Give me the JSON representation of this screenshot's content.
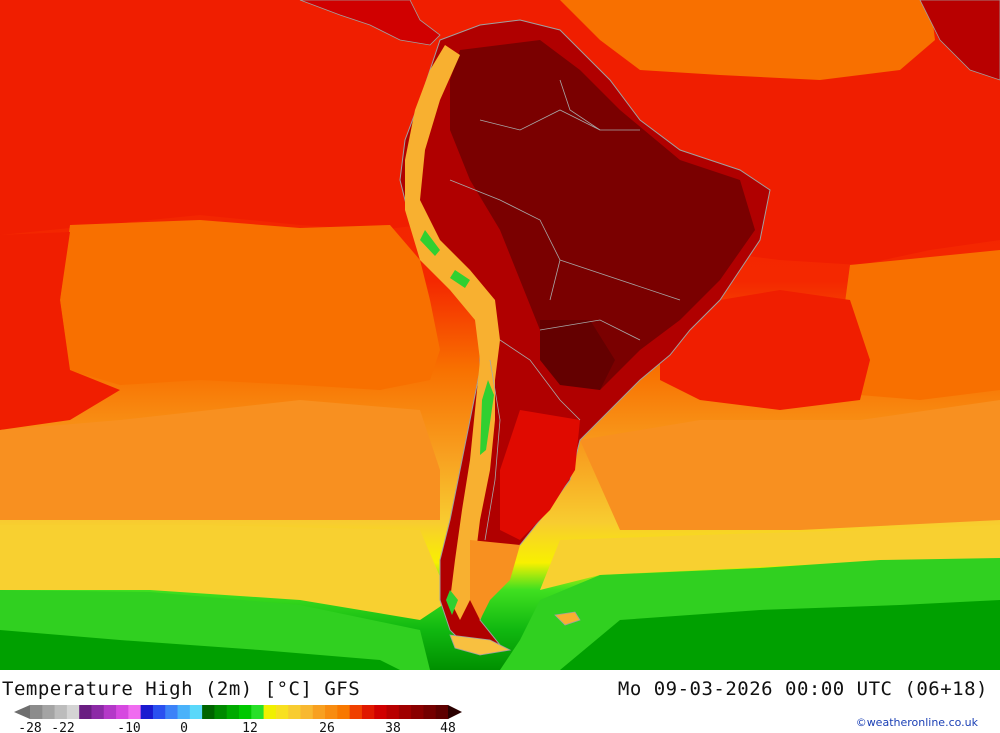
{
  "title": "Temperature High (2m) [°C] GFS",
  "datetime": "Mo 09-03-2026 00:00 UTC (06+18)",
  "credit": "©weatheronline.co.uk",
  "legend": {
    "tick_labels": [
      "-28",
      "-22",
      "-10",
      "0",
      "12",
      "26",
      "38",
      "48"
    ],
    "tick_values": [
      -28,
      -22,
      -10,
      0,
      12,
      26,
      38,
      48
    ],
    "min": -28,
    "max": 48,
    "colors": [
      "#8c8c8c",
      "#a4a4a4",
      "#bcbcbc",
      "#d4d4d4",
      "#6a1e82",
      "#8c2aa6",
      "#b438c8",
      "#d648e0",
      "#f06cf0",
      "#1a1ad0",
      "#2a50f0",
      "#3c82f8",
      "#4ab2fa",
      "#5ad8fa",
      "#006400",
      "#008a00",
      "#00aa00",
      "#00c800",
      "#28e028",
      "#f0f000",
      "#f8e020",
      "#f8cc30",
      "#f8b830",
      "#f8a020",
      "#f88c10",
      "#f87800",
      "#f04000",
      "#e01800",
      "#d00000",
      "#b80000",
      "#a00000",
      "#8a0000",
      "#740000",
      "#5e0000"
    ]
  },
  "map": {
    "palette": {
      "ocean_warm": "#f01e00",
      "ocean_mid": "#f87000",
      "ocean_cool": "#f8a020",
      "ocean_yellow": "#f8e020",
      "ocean_green": "#28d028",
      "ocean_dark_green": "#009600",
      "land_hot": "#8c0000",
      "land_very_hot": "#6a0000",
      "andes": "#f8c040",
      "border": "#a0a0a0"
    }
  }
}
